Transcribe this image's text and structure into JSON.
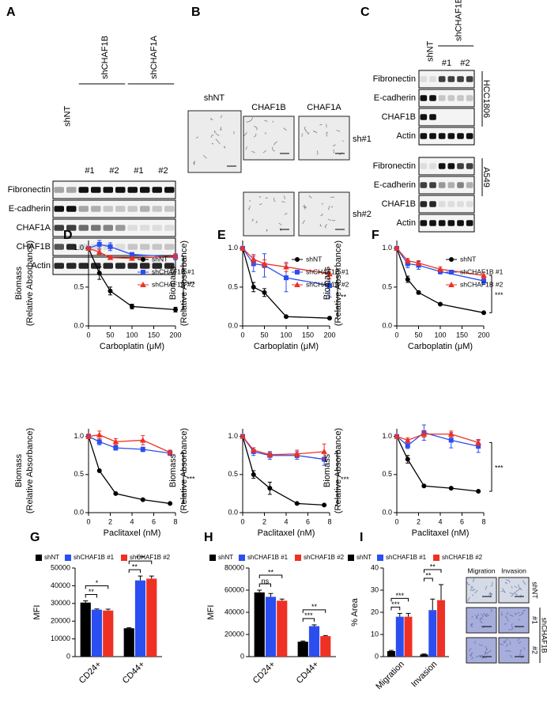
{
  "panels": {
    "A": {
      "label": "A",
      "groups": [
        "shNT",
        "shCHAF1B",
        "shCHAF1A"
      ],
      "lanes": [
        "#1",
        "#2",
        "#1",
        "#2"
      ],
      "rows": [
        "Fibronectin",
        "E-cadherin",
        "CHAF1A",
        "CHAF1B",
        "Actin"
      ]
    },
    "B": {
      "label": "B",
      "columns": [
        "shNT",
        "CHAF1B",
        "CHAF1A"
      ],
      "rows": [
        "sh#1",
        "sh#2"
      ]
    },
    "C": {
      "label": "C",
      "groups": [
        "shNT",
        "shCHAF1B"
      ],
      "lanes": [
        "#1",
        "#2"
      ],
      "blots": [
        {
          "cell_line": "HCC1806",
          "rows": [
            "Fibronectin",
            "E-cadherin",
            "CHAF1B",
            "Actin"
          ]
        },
        {
          "cell_line": "A549",
          "rows": [
            "Fibronectin",
            "E-cadherin",
            "CHAF1B",
            "Actin"
          ]
        }
      ]
    },
    "I": {
      "columns": [
        "Migration",
        "Invasion"
      ],
      "rows": [
        "shNT",
        "#1",
        "#2"
      ],
      "group": "shCHAF1B"
    }
  },
  "chart_data": [
    {
      "type": "line",
      "label": "D",
      "ylabel": [
        "Biomass",
        "(Relative Absorbance)"
      ],
      "xlabel": "Carboplatin (μM)",
      "x": [
        0,
        25,
        50,
        100,
        200
      ],
      "xlim": [
        0,
        200
      ],
      "xticks": [
        0,
        50,
        100,
        150,
        200
      ],
      "ylim": [
        0,
        1.1
      ],
      "yticks": [
        {
          "value": 0,
          "label": "0.0"
        },
        {
          "value": 0.5,
          "label": "0.5"
        },
        {
          "value": 1,
          "label": "1.0"
        }
      ],
      "legend": "upper right",
      "annotation": "***",
      "series": [
        {
          "name": "shNT",
          "color": "#000000",
          "marker": "circle",
          "values": [
            1.0,
            0.68,
            0.45,
            0.25,
            0.21
          ],
          "errors": [
            0.02,
            0.08,
            0.05,
            0.03,
            0.03
          ]
        },
        {
          "name": "shCHAF1B #1",
          "color": "#2b4ef0",
          "marker": "square",
          "values": [
            1.0,
            1.05,
            1.02,
            0.92,
            0.89
          ],
          "errors": [
            0.02,
            0.05,
            0.05,
            0.02,
            0.04
          ]
        },
        {
          "name": "shCHAF1B #2",
          "color": "#ee3124",
          "marker": "triangle",
          "values": [
            1.0,
            0.95,
            0.88,
            0.87,
            0.9
          ],
          "errors": [
            0.02,
            0.03,
            0.02,
            0.02,
            0.02
          ]
        }
      ]
    },
    {
      "type": "line",
      "ylabel": [
        "Biomass",
        "(Relative Absorbance)"
      ],
      "xlabel": "Paclitaxel (nM)",
      "x": [
        0,
        1,
        2.5,
        5,
        7.5
      ],
      "xlim": [
        0,
        8
      ],
      "xticks": [
        0,
        2,
        4,
        6,
        8
      ],
      "ylim": [
        0,
        1.1
      ],
      "yticks": [
        {
          "value": 0,
          "label": "0.0"
        },
        {
          "value": 0.5,
          "label": "0.5"
        },
        {
          "value": 1,
          "label": "1.0"
        }
      ],
      "annotation": "***",
      "series": [
        {
          "color": "#000000",
          "marker": "circle",
          "values": [
            1.0,
            0.55,
            0.25,
            0.17,
            0.12
          ],
          "errors": [
            0.01,
            0.01,
            0.01,
            0.01,
            0.01
          ]
        },
        {
          "color": "#2b4ef0",
          "marker": "square",
          "values": [
            1.0,
            0.93,
            0.85,
            0.83,
            0.78
          ],
          "errors": [
            0.03,
            0.04,
            0.03,
            0.03,
            0.03
          ]
        },
        {
          "color": "#ee3124",
          "marker": "triangle",
          "values": [
            1.0,
            1.02,
            0.93,
            0.95,
            0.79
          ],
          "errors": [
            0.03,
            0.05,
            0.04,
            0.06,
            0.03
          ]
        }
      ]
    },
    {
      "type": "line",
      "label": "E",
      "ylabel": [
        "Biomass",
        "(Relative Absorbance)"
      ],
      "xlabel": "Carboplatin (μM)",
      "x": [
        0,
        25,
        50,
        100,
        200
      ],
      "xlim": [
        0,
        200
      ],
      "xticks": [
        0,
        50,
        100,
        150,
        200
      ],
      "ylim": [
        0,
        1.1
      ],
      "yticks": [
        {
          "value": 0,
          "label": "0.0"
        },
        {
          "value": 0.5,
          "label": "0.5"
        },
        {
          "value": 1,
          "label": "1.0"
        }
      ],
      "legend": "upper right",
      "annotation": "**",
      "series": [
        {
          "name": "shNT",
          "color": "#000000",
          "marker": "circle",
          "values": [
            1.0,
            0.5,
            0.43,
            0.12,
            0.1
          ],
          "errors": [
            0.02,
            0.06,
            0.05,
            0.01,
            0.01
          ]
        },
        {
          "name": "shCHAF1B #1",
          "color": "#2b4ef0",
          "marker": "square",
          "values": [
            1.0,
            0.8,
            0.78,
            0.62,
            0.52
          ],
          "errors": [
            0.02,
            0.1,
            0.15,
            0.18,
            0.15
          ]
        },
        {
          "name": "shCHAF1B #2",
          "color": "#ee3124",
          "marker": "triangle",
          "values": [
            1.0,
            0.86,
            0.8,
            0.76,
            0.67
          ],
          "errors": [
            0.02,
            0.06,
            0.05,
            0.06,
            0.06
          ]
        }
      ]
    },
    {
      "type": "line",
      "ylabel": [
        "Biomass",
        "(Relative Absorbance)"
      ],
      "xlabel": "Paclitaxel (nM)",
      "x": [
        0,
        1,
        2.5,
        5,
        7.5
      ],
      "xlim": [
        0,
        8
      ],
      "xticks": [
        0,
        2,
        4,
        6,
        8
      ],
      "ylim": [
        0,
        1.1
      ],
      "yticks": [
        {
          "value": 0,
          "label": "0.0"
        },
        {
          "value": 0.5,
          "label": "0.5"
        },
        {
          "value": 1,
          "label": "1.0"
        }
      ],
      "annotation": "***",
      "series": [
        {
          "color": "#000000",
          "marker": "circle",
          "values": [
            1.0,
            0.5,
            0.32,
            0.12,
            0.1
          ],
          "errors": [
            0.02,
            0.05,
            0.08,
            0.01,
            0.01
          ]
        },
        {
          "color": "#2b4ef0",
          "marker": "square",
          "values": [
            1.0,
            0.8,
            0.75,
            0.75,
            0.7
          ],
          "errors": [
            0.02,
            0.05,
            0.05,
            0.05,
            0.08
          ]
        },
        {
          "color": "#ee3124",
          "marker": "triangle",
          "values": [
            1.0,
            0.82,
            0.76,
            0.77,
            0.8
          ],
          "errors": [
            0.02,
            0.03,
            0.03,
            0.05,
            0.1
          ]
        }
      ]
    },
    {
      "type": "line",
      "label": "F",
      "ylabel": [
        "Biomass",
        "(Relative Absorbance)"
      ],
      "xlabel": "Carboplatin (μM)",
      "x": [
        0,
        25,
        50,
        100,
        200
      ],
      "xlim": [
        0,
        200
      ],
      "xticks": [
        0,
        50,
        100,
        150,
        200
      ],
      "ylim": [
        0,
        1.1
      ],
      "yticks": [
        {
          "value": 0,
          "label": "0.0"
        },
        {
          "value": 0.5,
          "label": "0.5"
        },
        {
          "value": 1,
          "label": "1.0"
        }
      ],
      "legend": "upper right",
      "annotation": "***",
      "series": [
        {
          "name": "shNT",
          "color": "#000000",
          "marker": "circle",
          "values": [
            1.0,
            0.6,
            0.43,
            0.28,
            0.17
          ],
          "errors": [
            0.02,
            0.04,
            0.02,
            0.01,
            0.01
          ]
        },
        {
          "name": "shCHAF1B #1",
          "color": "#2b4ef0",
          "marker": "square",
          "values": [
            1.0,
            0.8,
            0.78,
            0.7,
            0.58
          ],
          "errors": [
            0.02,
            0.05,
            0.05,
            0.03,
            0.04
          ]
        },
        {
          "name": "shCHAF1B #2",
          "color": "#ee3124",
          "marker": "triangle",
          "values": [
            1.0,
            0.84,
            0.81,
            0.73,
            0.65
          ],
          "errors": [
            0.02,
            0.03,
            0.03,
            0.03,
            0.04
          ]
        }
      ]
    },
    {
      "type": "line",
      "ylabel": [
        "Biomass",
        "(Relative Absorbance)"
      ],
      "xlabel": "Paclitaxel (nM)",
      "x": [
        0,
        1,
        2.5,
        5,
        7.5
      ],
      "xlim": [
        0,
        8
      ],
      "xticks": [
        0,
        2,
        4,
        6,
        8
      ],
      "ylim": [
        0,
        1.1
      ],
      "yticks": [
        {
          "value": 0,
          "label": "0.0"
        },
        {
          "value": 0.5,
          "label": "0.5"
        },
        {
          "value": 1,
          "label": "1.0"
        }
      ],
      "annotation": "***",
      "series": [
        {
          "color": "#000000",
          "marker": "circle",
          "values": [
            1.0,
            0.7,
            0.35,
            0.32,
            0.28
          ],
          "errors": [
            0.02,
            0.05,
            0.01,
            0.01,
            0.01
          ]
        },
        {
          "color": "#2b4ef0",
          "marker": "square",
          "values": [
            1.0,
            0.88,
            1.05,
            0.95,
            0.87
          ],
          "errors": [
            0.02,
            0.04,
            0.1,
            0.1,
            0.08
          ]
        },
        {
          "color": "#ee3124",
          "marker": "triangle",
          "values": [
            1.0,
            0.95,
            1.03,
            1.03,
            0.92
          ],
          "errors": [
            0.02,
            0.03,
            0.04,
            0.04,
            0.04
          ]
        }
      ]
    },
    {
      "type": "bar",
      "label": "G",
      "ylabel": "MFI",
      "categories": [
        "CD24+",
        "CD44+"
      ],
      "ylim": [
        0,
        50000
      ],
      "yticks": [
        0,
        10000,
        20000,
        30000,
        40000,
        50000
      ],
      "legend": "top",
      "annotations": [
        "**",
        "*",
        "**",
        "***"
      ],
      "series": [
        {
          "name": "shNT",
          "color": "#000000",
          "values": [
            30500,
            16000
          ],
          "errors": [
            1000,
            300
          ]
        },
        {
          "name": "shCHAF1B #1",
          "color": "#2b4ef0",
          "values": [
            26500,
            43000
          ],
          "errors": [
            400,
            2500
          ]
        },
        {
          "name": "shCHAF1B #2",
          "color": "#ee3124",
          "values": [
            26000,
            44000
          ],
          "errors": [
            800,
            1500
          ]
        }
      ]
    },
    {
      "type": "bar",
      "label": "H",
      "ylabel": "MFI",
      "categories": [
        "CD24+",
        "CD44+"
      ],
      "ylim": [
        0,
        80000
      ],
      "yticks": [
        0,
        20000,
        40000,
        60000,
        80000
      ],
      "legend": "top",
      "annotations": [
        "ns",
        "**",
        "***",
        "**"
      ],
      "series": [
        {
          "name": "shNT",
          "color": "#000000",
          "values": [
            58000,
            13500
          ],
          "errors": [
            2000,
            600
          ]
        },
        {
          "name": "shCHAF1B #1",
          "color": "#2b4ef0",
          "values": [
            54000,
            27500
          ],
          "errors": [
            3000,
            1200
          ]
        },
        {
          "name": "shCHAF1B #2",
          "color": "#ee3124",
          "values": [
            50500,
            18500
          ],
          "errors": [
            1500,
            500
          ]
        }
      ]
    },
    {
      "type": "bar",
      "label": "I",
      "ylabel": "% Area",
      "categories": [
        "Migration",
        "Invasion"
      ],
      "ylim": [
        0,
        40
      ],
      "yticks": [
        0,
        10,
        20,
        30,
        40
      ],
      "legend": "top",
      "annotations": [
        "***",
        "***",
        "**",
        "**"
      ],
      "series": [
        {
          "name": "shNT",
          "color": "#000000",
          "values": [
            2.5,
            1
          ],
          "errors": [
            0.3,
            0.2
          ]
        },
        {
          "name": "shCHAF1B #1",
          "color": "#2b4ef0",
          "values": [
            18,
            21
          ],
          "errors": [
            1.5,
            5
          ]
        },
        {
          "name": "shCHAF1B #2",
          "color": "#ee3124",
          "values": [
            18,
            25.5
          ],
          "errors": [
            1.5,
            7
          ]
        }
      ]
    }
  ]
}
